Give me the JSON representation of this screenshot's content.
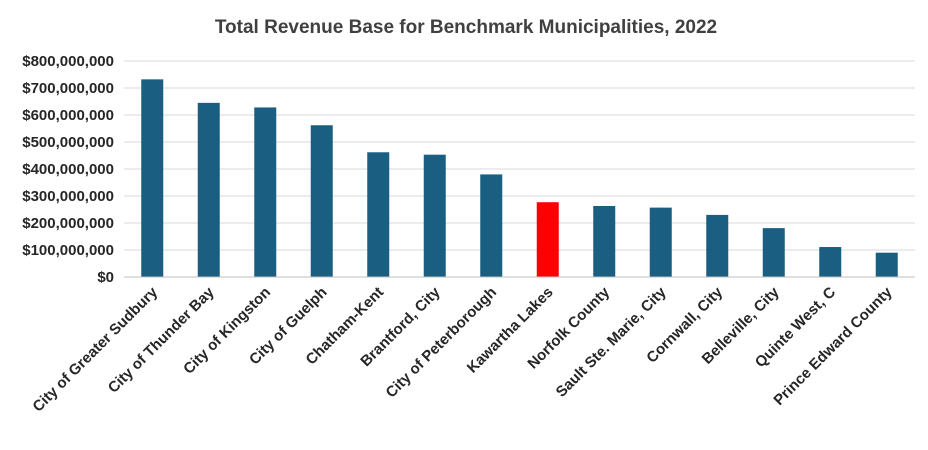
{
  "chart_data": {
    "type": "bar",
    "title": "Total Revenue Base for Benchmark Municipalities, 2022",
    "xlabel": "",
    "ylabel": "",
    "ylim": [
      0,
      800000000
    ],
    "yticks": [
      0,
      100000000,
      200000000,
      300000000,
      400000000,
      500000000,
      600000000,
      700000000,
      800000000
    ],
    "ytick_labels": [
      "$0",
      "$100,000,000",
      "$200,000,000",
      "$300,000,000",
      "$400,000,000",
      "$500,000,000",
      "$600,000,000",
      "$700,000,000",
      "$800,000,000"
    ],
    "grid": true,
    "legend": "none",
    "categories": [
      "City of Greater Sudbury",
      "City of Thunder Bay",
      "City of Kingston",
      "City of Guelph",
      "Chatham-Kent",
      "Brantford, City",
      "City of Peterborough",
      "Kawartha Lakes",
      "Norfolk County",
      "Sault Ste. Marie, City",
      "Cornwall, City",
      "Belleville, City",
      "Quinte West, C",
      "Prince Edward County"
    ],
    "values": [
      732000000,
      645000000,
      628000000,
      562000000,
      462000000,
      453000000,
      380000000,
      277000000,
      263000000,
      257000000,
      230000000,
      181000000,
      111000000,
      90000000
    ],
    "colors": {
      "default": "#1a5e82",
      "highlight": "#ff0000"
    },
    "highlight_category": "Kawartha Lakes"
  }
}
